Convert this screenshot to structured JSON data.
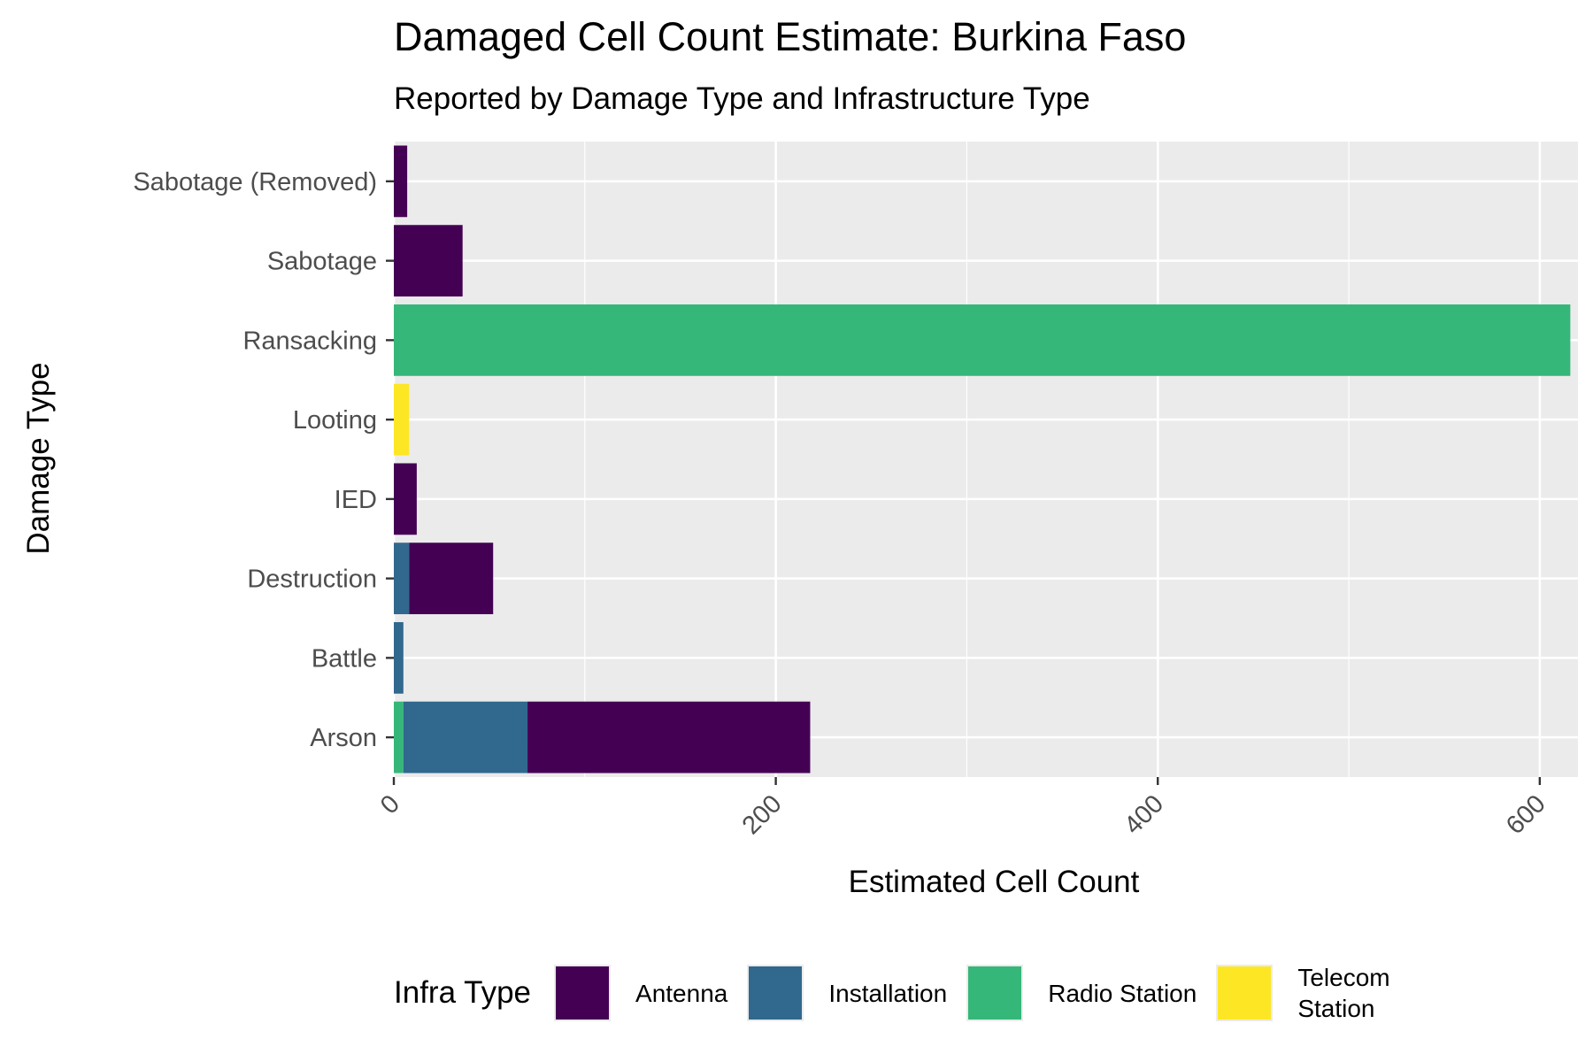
{
  "chart_data": {
    "type": "bar",
    "orientation": "horizontal",
    "stacked": true,
    "title": "Damaged Cell Count Estimate: Burkina Faso",
    "subtitle": "Reported by Damage Type and Infrastructure Type",
    "xlabel": "Estimated Cell Count",
    "ylabel": "Damage Type",
    "xlim": [
      0,
      620
    ],
    "xticks": [
      "0",
      "200",
      "400",
      "600"
    ],
    "grid": true,
    "legend_position": "bottom",
    "legend_title": "Infra Type",
    "categories": [
      "Arson",
      "Battle",
      "Destruction",
      "IED",
      "Looting",
      "Ransacking",
      "Sabotage",
      "Sabotage (Removed)"
    ],
    "series": [
      {
        "name": "Radio Station",
        "color": "#35b779",
        "values": [
          5,
          0,
          0,
          0,
          0,
          616,
          0,
          0
        ]
      },
      {
        "name": "Installation",
        "color": "#31688e",
        "values": [
          65,
          5,
          8,
          0,
          0,
          0,
          0,
          0
        ]
      },
      {
        "name": "Antenna",
        "color": "#440154",
        "values": [
          148,
          0,
          44,
          12,
          0,
          0,
          36,
          7
        ]
      },
      {
        "name": "Telecom\nStation",
        "color": "#fde725",
        "values": [
          0,
          0,
          0,
          0,
          8,
          0,
          0,
          0
        ]
      }
    ],
    "legend_order": [
      "Antenna",
      "Installation",
      "Radio Station",
      "Telecom\nStation"
    ]
  }
}
